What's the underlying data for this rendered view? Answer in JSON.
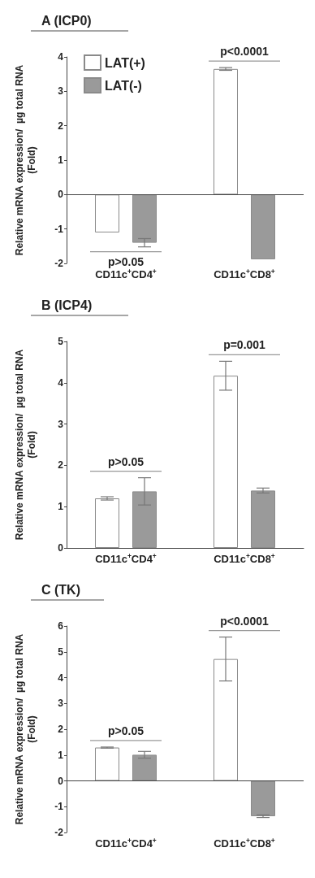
{
  "chart_data": [
    {
      "type": "bar",
      "title": "A (ICP0)",
      "ylabel": "Relative mRNA expression/  µg total RNA\n(Fold)",
      "categories": [
        "CD11c$^{+}$CD4$^{+}$",
        "CD11c$^{+}$CD8$^{+}$"
      ],
      "series": [
        {
          "name": "LAT(+)",
          "color": "#ffffff",
          "values": [
            -1.1,
            3.65
          ],
          "errors": [
            null,
            0.04
          ]
        },
        {
          "name": "LAT(-)",
          "color": "#9a9a9a",
          "values": [
            -1.4,
            -1.88
          ],
          "errors": [
            0.12,
            null
          ]
        }
      ],
      "ylim": [
        -2,
        4
      ],
      "yticks": [
        -2,
        -1,
        0,
        1,
        2,
        3,
        4
      ],
      "grid": false,
      "legend": "top left",
      "ref_lines": [
        {
          "axis": "y",
          "value": 0
        }
      ],
      "annotations": [
        "p>0.05",
        "p<0.0001"
      ]
    },
    {
      "type": "bar",
      "title": "B (ICP4)",
      "ylabel": "Relative mRNA expression/  µg total RNA\n(Fold)",
      "categories": [
        "CD11c$^{+}$CD4$^{+}$",
        "CD11c$^{+}$CD8$^{+}$"
      ],
      "series": [
        {
          "color": "#ffffff",
          "values": [
            1.2,
            4.17
          ],
          "errors": [
            0.04,
            0.35
          ]
        },
        {
          "color": "#9a9a9a",
          "values": [
            1.37,
            1.39
          ],
          "errors": [
            0.33,
            0.06
          ]
        }
      ],
      "ylim": [
        0,
        5
      ],
      "yticks": [
        0,
        1,
        2,
        3,
        4,
        5
      ],
      "grid": false,
      "annotations": [
        "p>0.05",
        "p=0.001"
      ]
    },
    {
      "type": "bar",
      "title": "C (TK)",
      "ylabel": "Relative mRNA expression/  µg total RNA\n(Fold)",
      "categories": [
        "CD11c$^{+}$CD4$^{+}$",
        "CD11c$^{+}$CD8$^{+}$"
      ],
      "series": [
        {
          "color": "#ffffff",
          "values": [
            1.29,
            4.72
          ],
          "errors": [
            0.02,
            0.85
          ]
        },
        {
          "color": "#9a9a9a",
          "values": [
            1.01,
            -1.37
          ],
          "errors": [
            0.13,
            0.05
          ]
        }
      ],
      "ylim": [
        -2,
        6
      ],
      "yticks": [
        -2,
        -1,
        0,
        1,
        2,
        3,
        4,
        5,
        6
      ],
      "grid": false,
      "ref_lines": [
        {
          "axis": "y",
          "value": 0
        }
      ],
      "annotations": [
        "p>0.05",
        "p<0.0001"
      ]
    }
  ]
}
